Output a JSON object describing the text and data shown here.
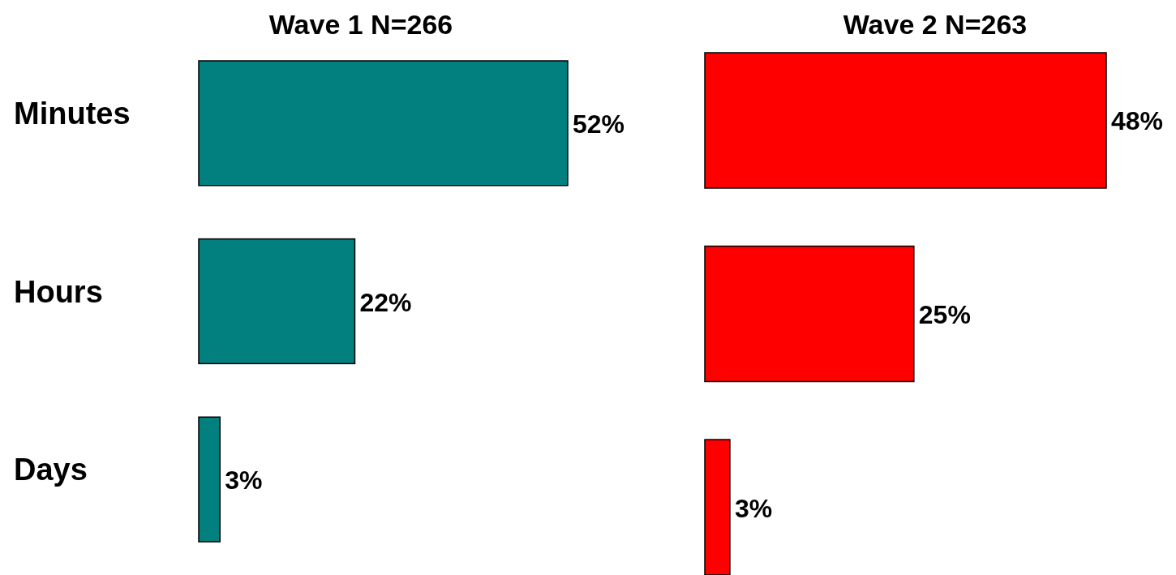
{
  "chart_data": [
    {
      "type": "bar",
      "orientation": "horizontal",
      "title": "Wave 1 N=266",
      "categories": [
        "Minutes",
        "Hours",
        "Days"
      ],
      "values": [
        52,
        22,
        3
      ],
      "color": "#027f7f",
      "data_labels": true,
      "value_labels": [
        "52%",
        "22%",
        "3%"
      ],
      "tick_labels": "y"
    },
    {
      "type": "bar",
      "orientation": "horizontal",
      "title": "Wave 2 N=263",
      "categories": [
        null,
        null,
        null
      ],
      "values": [
        48,
        25,
        3
      ],
      "color": "#ff0000",
      "data_labels": true,
      "value_labels": [
        "48%",
        "25%",
        "3%"
      ]
    }
  ]
}
